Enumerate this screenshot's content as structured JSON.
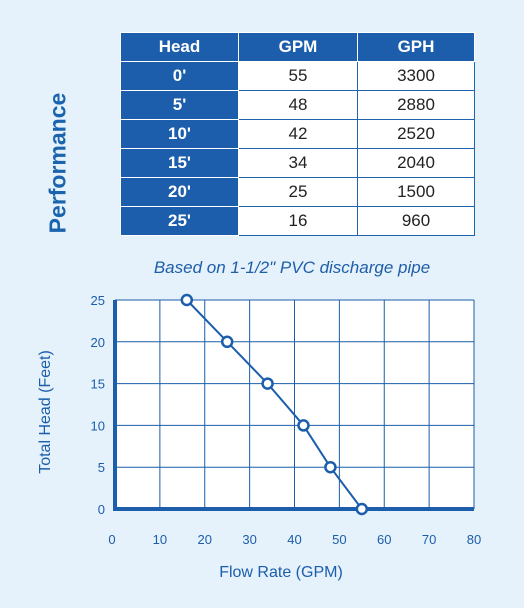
{
  "side_label": "Performance",
  "table": {
    "headers": [
      "Head",
      "GPM",
      "GPH"
    ],
    "rows": [
      [
        "0'",
        "55",
        "3300"
      ],
      [
        "5'",
        "48",
        "2880"
      ],
      [
        "10'",
        "42",
        "2520"
      ],
      [
        "15'",
        "34",
        "2040"
      ],
      [
        "20'",
        "25",
        "1500"
      ],
      [
        "25'",
        "16",
        "960"
      ]
    ]
  },
  "caption": "Based on 1-1/2\" PVC discharge pipe",
  "chart_data": {
    "type": "line",
    "title": "",
    "xlabel": "Flow Rate (GPM)",
    "ylabel": "Total Head (Feet)",
    "x_ticks": [
      0,
      10,
      20,
      30,
      40,
      50,
      60,
      70,
      80
    ],
    "y_ticks": [
      0,
      5,
      10,
      15,
      20,
      25
    ],
    "xlim": [
      0,
      80
    ],
    "ylim": [
      0,
      25
    ],
    "grid": true,
    "series": [
      {
        "x": [
          16,
          25,
          34,
          42,
          48,
          55
        ],
        "y": [
          25,
          20,
          15,
          10,
          5,
          0
        ]
      }
    ],
    "colors": {
      "line": "#1c5eab",
      "grid": "#1c5eab",
      "marker_fill": "#ffffff"
    }
  }
}
